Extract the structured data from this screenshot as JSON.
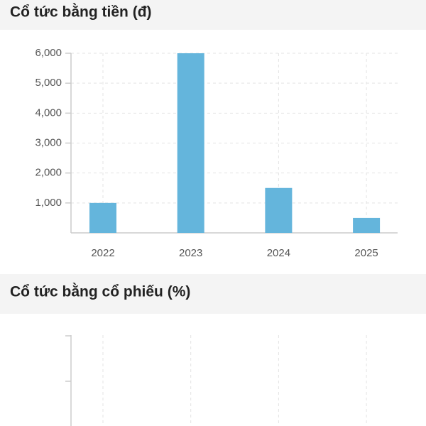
{
  "chart_data": [
    {
      "type": "bar",
      "title": "Cổ tức bằng tiền (đ)",
      "categories": [
        "2022",
        "2023",
        "2024",
        "2025"
      ],
      "values": [
        1000,
        6000,
        1500,
        500
      ],
      "color": "#64b5dc",
      "ylim": [
        0,
        6000
      ],
      "yticks": [
        {
          "value": 1000,
          "label": "1,000"
        },
        {
          "value": 2000,
          "label": "2,000"
        },
        {
          "value": 3000,
          "label": "3,000"
        },
        {
          "value": 4000,
          "label": "4,000"
        },
        {
          "value": 5000,
          "label": "5,000"
        },
        {
          "value": 6000,
          "label": "6,000"
        }
      ],
      "grid": true
    },
    {
      "type": "bar",
      "title": "Cổ tức bằng cổ phiếu (%)",
      "categories": [
        null,
        null,
        null,
        null
      ],
      "grid": true
    }
  ]
}
